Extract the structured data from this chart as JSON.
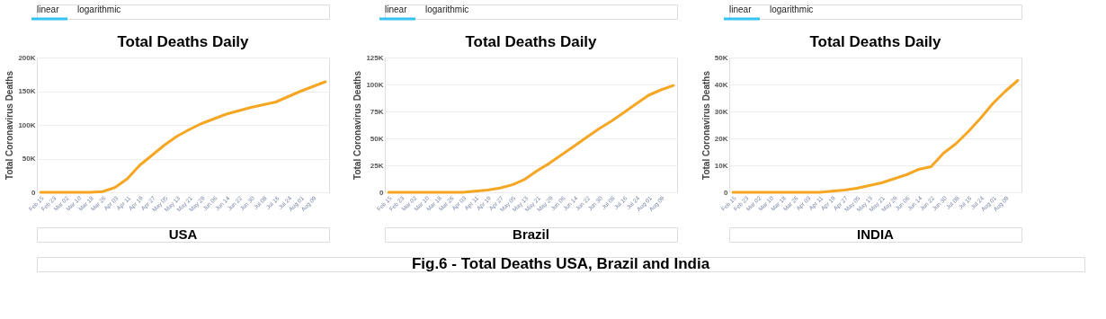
{
  "chart_data": [
    {
      "type": "line",
      "title": "Total Deaths Daily",
      "ylabel": "Total Coronavirus Deaths",
      "annotations": [
        "linear",
        "logarithmic",
        "USA",
        "Fig.6 - Total Deaths USA, Brazil and India"
      ],
      "categories": [
        "Feb 15",
        "Feb 23",
        "Mar 02",
        "Mar 10",
        "Mar 18",
        "Mar 26",
        "Apr 03",
        "Apr 11",
        "Apr 19",
        "Apr 27",
        "May 05",
        "May 13",
        "May 21",
        "May 29",
        "Jun 06",
        "Jun 14",
        "Jun 22",
        "Jun 30",
        "Jul 08",
        "Jul 16",
        "Jul 24",
        "Aug 01",
        "Aug 09",
        null
      ],
      "series": [
        {
          "color": "#f5a623",
          "values": [
            0,
            0,
            0,
            0,
            0,
            1000,
            7000,
            20000,
            40000,
            55000,
            70000,
            83000,
            93000,
            102000,
            109000,
            116000,
            121000,
            126000,
            130000,
            134000,
            142000,
            150000,
            157000,
            164000
          ]
        }
      ],
      "ylim": [
        0,
        200000
      ],
      "yticks": [
        {
          "value": 0,
          "label": "0"
        },
        {
          "value": 50000,
          "label": "50K"
        },
        {
          "value": 100000,
          "label": "100K"
        },
        {
          "value": 150000,
          "label": "150K"
        },
        {
          "value": 200000,
          "label": "200K"
        }
      ],
      "grid": "y",
      "legend": false,
      "marker": "none",
      "line_style": "solid"
    },
    {
      "type": "line",
      "title": "Total Deaths Daily",
      "ylabel": "Total Coronavirus Deaths",
      "annotations": [
        "linear",
        "logarithmic",
        "Brazil"
      ],
      "categories": [
        "Feb 15",
        "Feb 23",
        "Mar 02",
        "Mar 10",
        "Mar 18",
        "Mar 26",
        "Apr 03",
        "Apr 11",
        "Apr 19",
        "Apr 27",
        "May 05",
        "May 13",
        "May 21",
        "May 29",
        "Jun 06",
        "Jun 14",
        "Jun 22",
        "Jun 30",
        "Jul 08",
        "Jul 16",
        "Jul 24",
        "Aug 01",
        "Aug 09",
        null
      ],
      "series": [
        {
          "color": "#f5a623",
          "values": [
            0,
            0,
            0,
            0,
            0,
            0,
            0,
            1000,
            2000,
            4000,
            7000,
            12000,
            20000,
            27000,
            35000,
            43000,
            51000,
            59000,
            66000,
            74000,
            82000,
            90000,
            95000,
            99000
          ]
        }
      ],
      "ylim": [
        0,
        125000
      ],
      "yticks": [
        {
          "value": 0,
          "label": "0"
        },
        {
          "value": 25000,
          "label": "25K"
        },
        {
          "value": 50000,
          "label": "50K"
        },
        {
          "value": 75000,
          "label": "75K"
        },
        {
          "value": 100000,
          "label": "100K"
        },
        {
          "value": 125000,
          "label": "125K"
        }
      ],
      "grid": "y",
      "legend": false,
      "marker": "none",
      "line_style": "solid"
    },
    {
      "type": "line",
      "title": "Total Deaths Daily",
      "ylabel": "Total Coronavirus Deaths",
      "annotations": [
        "linear",
        "logarithmic",
        "INDIA"
      ],
      "categories": [
        "Feb 15",
        "Feb 23",
        "Mar 02",
        "Mar 10",
        "Mar 18",
        "Mar 26",
        "Apr 03",
        "Apr 11",
        "Apr 19",
        "Apr 27",
        "May 05",
        "May 13",
        "May 21",
        "May 29",
        "Jun 06",
        "Jun 14",
        "Jun 22",
        "Jun 30",
        "Jul 08",
        "Jul 16",
        "Jul 24",
        "Aug 01",
        "Aug 09",
        null
      ],
      "series": [
        {
          "color": "#f5a623",
          "values": [
            0,
            0,
            0,
            0,
            0,
            0,
            0,
            0,
            400,
            800,
            1500,
            2500,
            3500,
            5000,
            6500,
            8500,
            9500,
            14500,
            18000,
            22500,
            27500,
            33000,
            37500,
            41500
          ]
        }
      ],
      "ylim": [
        0,
        50000
      ],
      "yticks": [
        {
          "value": 0,
          "label": "0"
        },
        {
          "value": 10000,
          "label": "10K"
        },
        {
          "value": 20000,
          "label": "20K"
        },
        {
          "value": 30000,
          "label": "30K"
        },
        {
          "value": 40000,
          "label": "40K"
        },
        {
          "value": 50000,
          "label": "50K"
        }
      ],
      "grid": "y",
      "legend": false,
      "marker": "none",
      "line_style": "solid"
    }
  ]
}
